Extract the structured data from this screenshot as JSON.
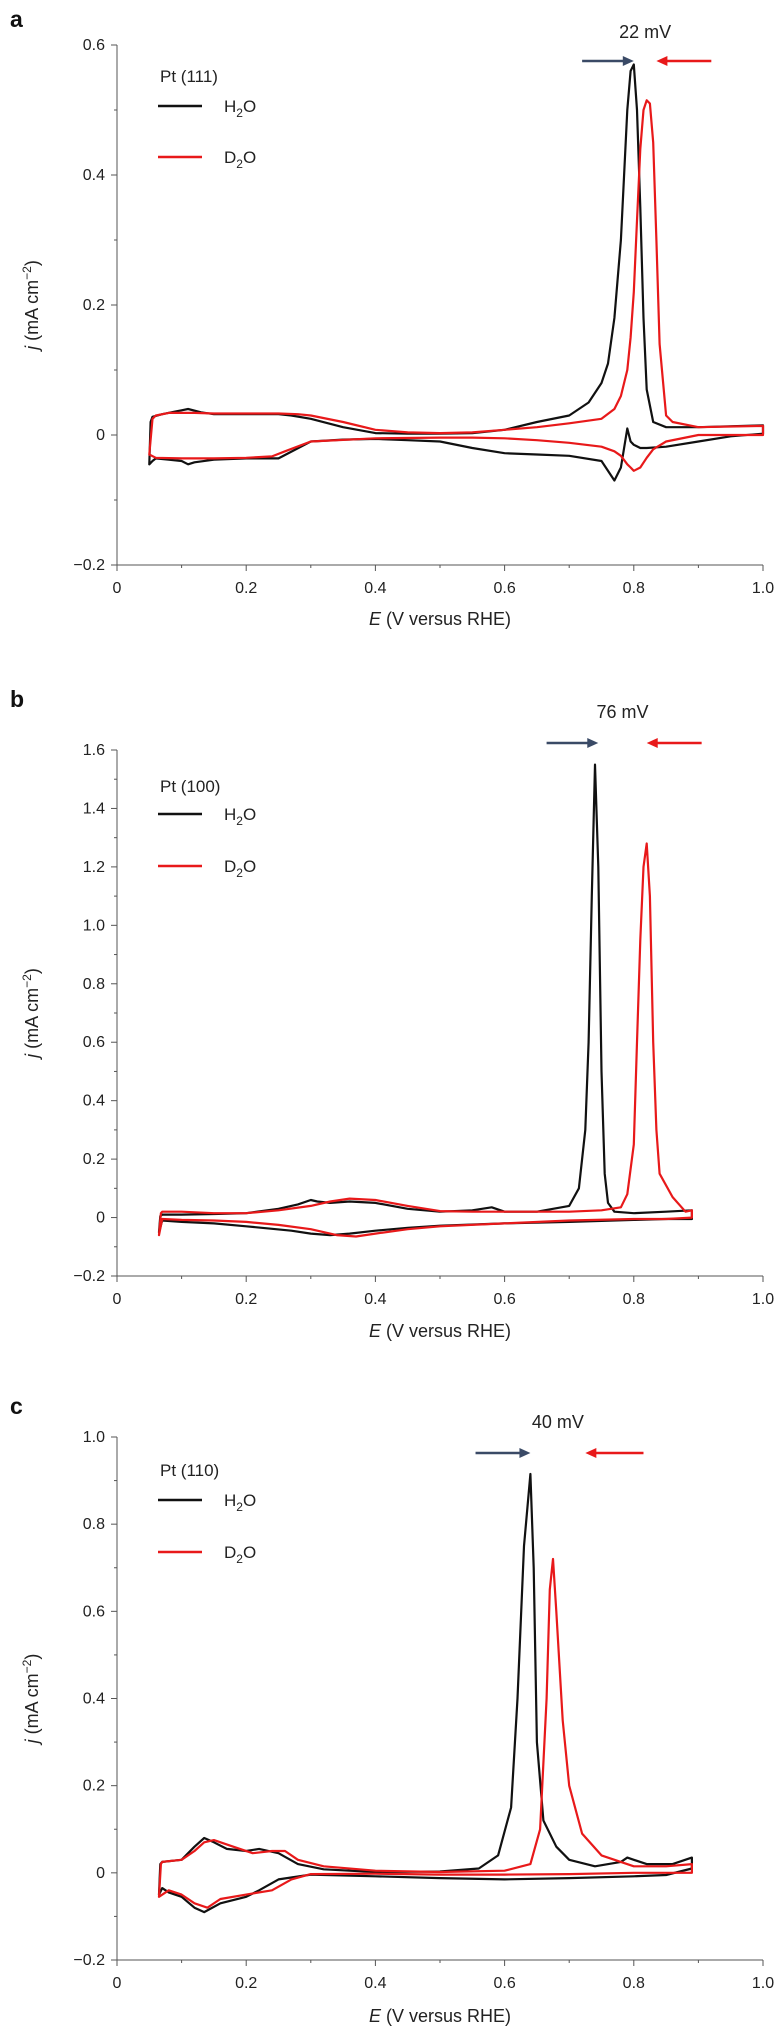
{
  "colors": {
    "h2o": "#111111",
    "d2o": "#e8191a",
    "arrow_h2o": "#3a4a66",
    "arrow_d2o": "#e8191a"
  },
  "chart_data": [
    {
      "type": "line",
      "panel": "a",
      "xlabel_italic": "E",
      "xlabel_rest": " (V versus RHE)",
      "ylabel_italic": "j",
      "ylabel_rest": " (mA cm",
      "ylabel_sup": "−2",
      "ylabel_close": ")",
      "xlim": [
        0,
        1.0
      ],
      "ylim": [
        -0.2,
        0.6
      ],
      "xticks": [
        0,
        0.2,
        0.4,
        0.6,
        0.8,
        1.0
      ],
      "xtick_labels": [
        "0",
        "0.2",
        "0.4",
        "0.6",
        "0.8",
        "1.0"
      ],
      "yticks": [
        -0.2,
        0,
        0.2,
        0.4,
        0.6
      ],
      "ytick_labels": [
        "−0.2",
        "0",
        "0.2",
        "0.4",
        "0.6"
      ],
      "legend_title": "Pt (111)",
      "legend": [
        {
          "main": "H",
          "sub": "2",
          "tail": "O"
        },
        {
          "main": "D",
          "sub": "2",
          "tail": "O"
        }
      ],
      "annotation": "22 mV",
      "arrow_h2o_x": [
        0.72,
        0.8
      ],
      "arrow_d2o_x": [
        0.92,
        0.835
      ],
      "series": [
        {
          "key": "h2o",
          "x": [
            0.05,
            0.052,
            0.055,
            0.07,
            0.09,
            0.1,
            0.11,
            0.13,
            0.15,
            0.2,
            0.25,
            0.27,
            0.3,
            0.35,
            0.4,
            0.45,
            0.5,
            0.55,
            0.6,
            0.65,
            0.7,
            0.73,
            0.75,
            0.76,
            0.77,
            0.78,
            0.785,
            0.79,
            0.795,
            0.8,
            0.805,
            0.81,
            0.815,
            0.82,
            0.83,
            0.85,
            0.9,
            1.0,
            1.0,
            0.95,
            0.9,
            0.85,
            0.82,
            0.81,
            0.8,
            0.795,
            0.79,
            0.785,
            0.78,
            0.77,
            0.75,
            0.7,
            0.65,
            0.6,
            0.55,
            0.5,
            0.45,
            0.4,
            0.35,
            0.3,
            0.25,
            0.2,
            0.15,
            0.12,
            0.11,
            0.1,
            0.08,
            0.06,
            0.055,
            0.05
          ],
          "y": [
            -0.045,
            0.02,
            0.028,
            0.032,
            0.036,
            0.038,
            0.04,
            0.035,
            0.032,
            0.032,
            0.032,
            0.03,
            0.025,
            0.012,
            0.003,
            0.002,
            0.002,
            0.003,
            0.008,
            0.02,
            0.03,
            0.05,
            0.08,
            0.11,
            0.18,
            0.3,
            0.4,
            0.5,
            0.56,
            0.57,
            0.5,
            0.35,
            0.18,
            0.07,
            0.02,
            0.012,
            0.012,
            0.015,
            0.002,
            -0.002,
            -0.01,
            -0.018,
            -0.02,
            -0.02,
            -0.015,
            -0.01,
            0.01,
            -0.02,
            -0.05,
            -0.07,
            -0.04,
            -0.032,
            -0.03,
            -0.028,
            -0.02,
            -0.01,
            -0.008,
            -0.006,
            -0.007,
            -0.01,
            -0.036,
            -0.036,
            -0.038,
            -0.042,
            -0.045,
            -0.04,
            -0.038,
            -0.036,
            -0.04,
            -0.045
          ]
        },
        {
          "key": "d2o",
          "x": [
            0.05,
            0.055,
            0.06,
            0.08,
            0.1,
            0.12,
            0.15,
            0.2,
            0.25,
            0.28,
            0.3,
            0.35,
            0.4,
            0.45,
            0.5,
            0.55,
            0.6,
            0.65,
            0.7,
            0.75,
            0.77,
            0.78,
            0.79,
            0.795,
            0.8,
            0.805,
            0.81,
            0.815,
            0.82,
            0.825,
            0.83,
            0.835,
            0.84,
            0.85,
            0.86,
            0.9,
            1.0,
            1.0,
            0.95,
            0.9,
            0.85,
            0.83,
            0.82,
            0.81,
            0.8,
            0.795,
            0.79,
            0.78,
            0.77,
            0.75,
            0.7,
            0.65,
            0.6,
            0.55,
            0.5,
            0.4,
            0.3,
            0.26,
            0.24,
            0.2,
            0.15,
            0.1,
            0.06,
            0.05
          ],
          "y": [
            -0.03,
            0.025,
            0.03,
            0.034,
            0.034,
            0.034,
            0.033,
            0.033,
            0.033,
            0.032,
            0.03,
            0.02,
            0.008,
            0.004,
            0.003,
            0.004,
            0.008,
            0.012,
            0.018,
            0.025,
            0.04,
            0.06,
            0.1,
            0.15,
            0.22,
            0.33,
            0.44,
            0.5,
            0.515,
            0.51,
            0.45,
            0.3,
            0.14,
            0.03,
            0.02,
            0.012,
            0.014,
            0.0,
            0.0,
            0.0,
            -0.01,
            -0.022,
            -0.035,
            -0.05,
            -0.055,
            -0.05,
            -0.045,
            -0.032,
            -0.025,
            -0.018,
            -0.012,
            -0.008,
            -0.005,
            -0.004,
            -0.004,
            -0.005,
            -0.01,
            -0.025,
            -0.033,
            -0.035,
            -0.036,
            -0.036,
            -0.035,
            -0.03
          ]
        }
      ]
    },
    {
      "type": "line",
      "panel": "b",
      "xlabel_italic": "E",
      "xlabel_rest": " (V versus RHE)",
      "ylabel_italic": "j",
      "ylabel_rest": " (mA cm",
      "ylabel_sup": "−2",
      "ylabel_close": ")",
      "xlim": [
        0,
        1.0
      ],
      "ylim": [
        -0.2,
        1.6
      ],
      "xticks": [
        0,
        0.2,
        0.4,
        0.6,
        0.8,
        1.0
      ],
      "xtick_labels": [
        "0",
        "0.2",
        "0.4",
        "0.6",
        "0.8",
        "1.0"
      ],
      "yticks": [
        -0.2,
        0,
        0.2,
        0.4,
        0.6,
        0.8,
        1.0,
        1.2,
        1.4,
        1.6
      ],
      "ytick_labels": [
        "−0.2",
        "0",
        "0.2",
        "0.4",
        "0.6",
        "0.8",
        "1.0",
        "1.2",
        "1.4",
        "1.6"
      ],
      "legend_title": "Pt (100)",
      "legend": [
        {
          "main": "H",
          "sub": "2",
          "tail": "O"
        },
        {
          "main": "D",
          "sub": "2",
          "tail": "O"
        }
      ],
      "annotation": "76 mV",
      "arrow_h2o_x": [
        0.665,
        0.745
      ],
      "arrow_d2o_x": [
        0.905,
        0.82
      ],
      "series": [
        {
          "key": "h2o",
          "x": [
            0.065,
            0.067,
            0.07,
            0.1,
            0.15,
            0.2,
            0.25,
            0.28,
            0.3,
            0.31,
            0.33,
            0.36,
            0.4,
            0.45,
            0.5,
            0.55,
            0.58,
            0.6,
            0.65,
            0.7,
            0.715,
            0.725,
            0.73,
            0.735,
            0.74,
            0.745,
            0.75,
            0.755,
            0.76,
            0.77,
            0.8,
            0.85,
            0.89,
            0.89,
            0.85,
            0.8,
            0.7,
            0.6,
            0.5,
            0.45,
            0.4,
            0.36,
            0.33,
            0.3,
            0.27,
            0.2,
            0.15,
            0.1,
            0.07,
            0.065
          ],
          "y": [
            -0.05,
            0.005,
            0.01,
            0.01,
            0.012,
            0.015,
            0.03,
            0.045,
            0.06,
            0.055,
            0.05,
            0.055,
            0.05,
            0.03,
            0.02,
            0.025,
            0.035,
            0.02,
            0.02,
            0.04,
            0.1,
            0.3,
            0.6,
            1.1,
            1.55,
            1.2,
            0.5,
            0.15,
            0.05,
            0.02,
            0.015,
            0.02,
            0.025,
            -0.005,
            -0.005,
            -0.008,
            -0.015,
            -0.02,
            -0.028,
            -0.035,
            -0.045,
            -0.055,
            -0.06,
            -0.055,
            -0.045,
            -0.03,
            -0.02,
            -0.015,
            -0.01,
            -0.05
          ]
        },
        {
          "key": "d2o",
          "x": [
            0.065,
            0.068,
            0.07,
            0.1,
            0.15,
            0.2,
            0.25,
            0.3,
            0.33,
            0.36,
            0.4,
            0.45,
            0.5,
            0.55,
            0.6,
            0.65,
            0.7,
            0.75,
            0.78,
            0.79,
            0.8,
            0.805,
            0.81,
            0.815,
            0.82,
            0.825,
            0.83,
            0.835,
            0.84,
            0.86,
            0.88,
            0.89,
            0.89,
            0.85,
            0.8,
            0.7,
            0.6,
            0.5,
            0.45,
            0.4,
            0.37,
            0.34,
            0.3,
            0.25,
            0.2,
            0.15,
            0.1,
            0.07,
            0.065
          ],
          "y": [
            -0.06,
            0.015,
            0.02,
            0.02,
            0.015,
            0.015,
            0.025,
            0.04,
            0.055,
            0.065,
            0.06,
            0.04,
            0.022,
            0.02,
            0.02,
            0.02,
            0.02,
            0.025,
            0.035,
            0.08,
            0.25,
            0.6,
            0.95,
            1.2,
            1.28,
            1.1,
            0.6,
            0.3,
            0.15,
            0.07,
            0.02,
            0.025,
            0.0,
            -0.005,
            -0.005,
            -0.01,
            -0.02,
            -0.03,
            -0.04,
            -0.055,
            -0.065,
            -0.06,
            -0.04,
            -0.025,
            -0.015,
            -0.01,
            -0.008,
            -0.005,
            -0.06
          ]
        }
      ]
    },
    {
      "type": "line",
      "panel": "c",
      "xlabel_italic": "E",
      "xlabel_rest": " (V versus RHE)",
      "ylabel_italic": "j",
      "ylabel_rest": " (mA cm",
      "ylabel_sup": "−2",
      "ylabel_close": ")",
      "xlim": [
        0,
        1.0
      ],
      "ylim": [
        -0.2,
        1.0
      ],
      "xticks": [
        0,
        0.2,
        0.4,
        0.6,
        0.8,
        1.0
      ],
      "xtick_labels": [
        "0",
        "0.2",
        "0.4",
        "0.6",
        "0.8",
        "1.0"
      ],
      "yticks": [
        -0.2,
        0,
        0.2,
        0.4,
        0.6,
        0.8,
        1.0
      ],
      "ytick_labels": [
        "−0.2",
        "0",
        "0.2",
        "0.4",
        "0.6",
        "0.8",
        "1.0"
      ],
      "legend_title": "Pt (110)",
      "legend": [
        {
          "main": "H",
          "sub": "2",
          "tail": "O"
        },
        {
          "main": "D",
          "sub": "2",
          "tail": "O"
        }
      ],
      "annotation": "40 mV",
      "arrow_h2o_x": [
        0.555,
        0.64
      ],
      "arrow_d2o_x": [
        0.815,
        0.725
      ],
      "series": [
        {
          "key": "h2o",
          "x": [
            0.065,
            0.067,
            0.07,
            0.1,
            0.12,
            0.135,
            0.15,
            0.17,
            0.2,
            0.22,
            0.25,
            0.28,
            0.32,
            0.4,
            0.5,
            0.56,
            0.59,
            0.61,
            0.62,
            0.63,
            0.64,
            0.645,
            0.65,
            0.66,
            0.68,
            0.7,
            0.74,
            0.78,
            0.79,
            0.8,
            0.82,
            0.86,
            0.89,
            0.89,
            0.85,
            0.8,
            0.7,
            0.6,
            0.5,
            0.4,
            0.3,
            0.25,
            0.22,
            0.2,
            0.16,
            0.135,
            0.12,
            0.1,
            0.08,
            0.07,
            0.065
          ],
          "y": [
            -0.05,
            0.02,
            0.025,
            0.03,
            0.06,
            0.08,
            0.07,
            0.055,
            0.05,
            0.055,
            0.045,
            0.02,
            0.008,
            0.002,
            0.003,
            0.01,
            0.04,
            0.15,
            0.4,
            0.75,
            0.915,
            0.7,
            0.3,
            0.12,
            0.06,
            0.03,
            0.015,
            0.025,
            0.035,
            0.03,
            0.02,
            0.02,
            0.035,
            0.01,
            -0.005,
            -0.008,
            -0.012,
            -0.015,
            -0.012,
            -0.008,
            -0.004,
            -0.015,
            -0.04,
            -0.055,
            -0.07,
            -0.09,
            -0.08,
            -0.055,
            -0.045,
            -0.035,
            -0.05
          ]
        },
        {
          "key": "d2o",
          "x": [
            0.065,
            0.068,
            0.07,
            0.1,
            0.12,
            0.135,
            0.15,
            0.18,
            0.21,
            0.24,
            0.26,
            0.28,
            0.32,
            0.4,
            0.5,
            0.6,
            0.64,
            0.655,
            0.665,
            0.67,
            0.675,
            0.68,
            0.69,
            0.7,
            0.72,
            0.75,
            0.8,
            0.85,
            0.89,
            0.89,
            0.85,
            0.8,
            0.7,
            0.6,
            0.5,
            0.4,
            0.3,
            0.27,
            0.24,
            0.2,
            0.16,
            0.14,
            0.12,
            0.1,
            0.08,
            0.065
          ],
          "y": [
            -0.055,
            0.02,
            0.025,
            0.03,
            0.05,
            0.07,
            0.075,
            0.06,
            0.045,
            0.05,
            0.05,
            0.03,
            0.015,
            0.005,
            0.002,
            0.005,
            0.02,
            0.1,
            0.4,
            0.65,
            0.72,
            0.6,
            0.35,
            0.2,
            0.09,
            0.04,
            0.015,
            0.015,
            0.02,
            0.0,
            0.0,
            0.0,
            -0.003,
            -0.004,
            -0.004,
            -0.002,
            -0.003,
            -0.015,
            -0.04,
            -0.05,
            -0.06,
            -0.08,
            -0.07,
            -0.05,
            -0.04,
            -0.055
          ]
        }
      ]
    }
  ]
}
